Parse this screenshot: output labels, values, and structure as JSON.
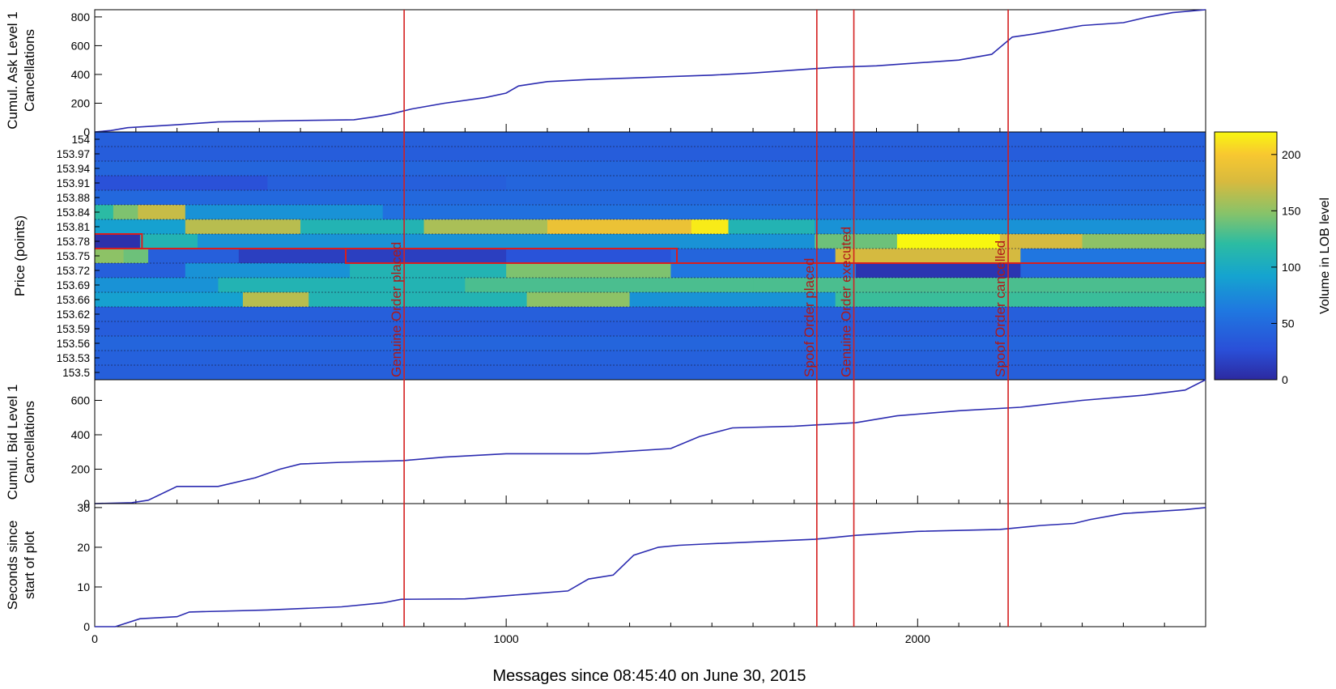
{
  "chart_data": [
    {
      "type": "line",
      "ylabel_line1": "Cumul. Ask Level 1",
      "ylabel_line2": "Cancellations",
      "xlim": [
        0,
        2700
      ],
      "ylim": [
        0,
        850
      ],
      "yticks": [
        "0",
        "200",
        "400",
        "600",
        "800"
      ],
      "ytick_values": [
        0,
        200,
        400,
        600,
        800
      ],
      "series": [
        {
          "color": "#2b2bb0",
          "x": [
            0,
            40,
            80,
            200,
            300,
            500,
            630,
            680,
            720,
            770,
            850,
            950,
            1000,
            1030,
            1100,
            1200,
            1300,
            1400,
            1500,
            1600,
            1700,
            1800,
            1900,
            2000,
            2100,
            2180,
            2230,
            2280,
            2340,
            2400,
            2500,
            2560,
            2620,
            2700
          ],
          "y": [
            0,
            10,
            30,
            50,
            70,
            80,
            85,
            105,
            125,
            160,
            200,
            240,
            270,
            320,
            350,
            365,
            375,
            385,
            395,
            410,
            430,
            450,
            460,
            480,
            500,
            540,
            660,
            680,
            710,
            740,
            760,
            800,
            830,
            850
          ]
        }
      ]
    },
    {
      "type": "heatmap",
      "ylabel": "Price (points)",
      "yticks": [
        "154",
        "153.97",
        "153.94",
        "153.91",
        "153.88",
        "153.84",
        "153.81",
        "153.78",
        "153.75",
        "153.72",
        "153.69",
        "153.66",
        "153.62",
        "153.59",
        "153.56",
        "153.53",
        "153.5"
      ],
      "xlim": [
        0,
        2700
      ],
      "colorbar": {
        "label": "Volume in LOB level",
        "range": [
          0,
          220
        ],
        "ticks": [
          "0",
          "50",
          "100",
          "150",
          "200"
        ],
        "tick_values": [
          0,
          50,
          100,
          150,
          200
        ]
      },
      "level_segments": [
        [
          [
            0,
            2700,
            40
          ]
        ],
        [
          [
            0,
            2700,
            38
          ]
        ],
        [
          [
            0,
            2700,
            45
          ]
        ],
        [
          [
            0,
            420,
            28
          ],
          [
            420,
            1000,
            40
          ],
          [
            1000,
            2700,
            45
          ]
        ],
        [
          [
            0,
            2700,
            48
          ]
        ],
        [
          [
            0,
            45,
            120
          ],
          [
            45,
            105,
            145
          ],
          [
            105,
            220,
            170
          ],
          [
            220,
            700,
            80
          ],
          [
            700,
            2700,
            55
          ]
        ],
        [
          [
            0,
            220,
            90
          ],
          [
            220,
            500,
            165
          ],
          [
            500,
            800,
            110
          ],
          [
            800,
            1100,
            160
          ],
          [
            1100,
            1450,
            190
          ],
          [
            1450,
            1540,
            215
          ],
          [
            1540,
            1750,
            110
          ],
          [
            1750,
            2700,
            80
          ]
        ],
        [
          [
            0,
            110,
            5
          ],
          [
            110,
            250,
            110
          ],
          [
            250,
            1750,
            80
          ],
          [
            1750,
            1950,
            140
          ],
          [
            1950,
            2200,
            220
          ],
          [
            2200,
            2400,
            175
          ],
          [
            2400,
            2700,
            150
          ]
        ],
        [
          [
            0,
            70,
            150
          ],
          [
            70,
            130,
            140
          ],
          [
            130,
            350,
            40
          ],
          [
            350,
            1000,
            15
          ],
          [
            1000,
            1400,
            30
          ],
          [
            1400,
            1800,
            45
          ],
          [
            1800,
            2250,
            175
          ],
          [
            2250,
            2700,
            60
          ]
        ],
        [
          [
            0,
            220,
            40
          ],
          [
            220,
            620,
            80
          ],
          [
            620,
            1000,
            110
          ],
          [
            1000,
            1400,
            145
          ],
          [
            1400,
            1850,
            60
          ],
          [
            1850,
            2250,
            8
          ],
          [
            2250,
            2700,
            45
          ]
        ],
        [
          [
            0,
            300,
            80
          ],
          [
            300,
            900,
            110
          ],
          [
            900,
            1600,
            130
          ],
          [
            1600,
            2700,
            130
          ]
        ],
        [
          [
            0,
            360,
            90
          ],
          [
            360,
            520,
            165
          ],
          [
            520,
            1050,
            110
          ],
          [
            1050,
            1300,
            150
          ],
          [
            1300,
            1800,
            80
          ],
          [
            1800,
            2700,
            125
          ]
        ],
        [
          [
            0,
            2700,
            40
          ]
        ],
        [
          [
            0,
            2700,
            38
          ]
        ],
        [
          [
            0,
            2700,
            45
          ]
        ],
        [
          [
            0,
            2700,
            42
          ]
        ],
        [
          [
            0,
            2700,
            40
          ]
        ]
      ],
      "genuine_order_outline": [
        [
          0,
          7
        ],
        [
          115,
          7
        ],
        [
          115,
          8
        ],
        [
          610,
          8
        ],
        [
          610,
          9
        ],
        [
          2700,
          9
        ]
      ],
      "spoof_order_outline": [
        [
          0,
          8
        ],
        [
          1415,
          8
        ],
        [
          1415,
          9
        ]
      ]
    },
    {
      "type": "line",
      "ylabel_line1": "Cumul. Bid Level 1",
      "ylabel_line2": "Cancellations",
      "xlim": [
        0,
        2700
      ],
      "ylim": [
        0,
        720
      ],
      "yticks": [
        "0",
        "200",
        "400",
        "600"
      ],
      "ytick_values": [
        0,
        200,
        400,
        600
      ],
      "series": [
        {
          "color": "#2b2bb0",
          "x": [
            0,
            90,
            130,
            200,
            300,
            390,
            450,
            500,
            600,
            750,
            850,
            1000,
            1200,
            1400,
            1470,
            1550,
            1700,
            1850,
            1950,
            2100,
            2250,
            2400,
            2550,
            2650,
            2700
          ],
          "y": [
            0,
            5,
            20,
            100,
            100,
            150,
            200,
            230,
            240,
            250,
            270,
            290,
            290,
            320,
            390,
            440,
            450,
            470,
            510,
            540,
            560,
            600,
            630,
            660,
            720
          ]
        }
      ]
    },
    {
      "type": "line",
      "ylabel_line1": "Seconds since",
      "ylabel_line2": "start of plot",
      "xlabel": "Messages since 08:45:40 on June 30, 2015",
      "xlim": [
        0,
        2700
      ],
      "ylim": [
        0,
        31
      ],
      "xticks": [
        "0",
        "1000",
        "2000"
      ],
      "xtick_values": [
        0,
        1000,
        2000
      ],
      "yticks": [
        "0",
        "10",
        "20",
        "30"
      ],
      "ytick_values": [
        0,
        10,
        20,
        30
      ],
      "series": [
        {
          "color": "#2b2bb0",
          "x": [
            0,
            50,
            110,
            200,
            230,
            420,
            600,
            700,
            745,
            900,
            1050,
            1150,
            1200,
            1260,
            1310,
            1370,
            1420,
            1480,
            1750,
            1850,
            2000,
            2200,
            2300,
            2380,
            2420,
            2500,
            2650,
            2700
          ],
          "y": [
            0,
            0,
            2,
            2.5,
            3.7,
            4.2,
            5,
            6,
            6.9,
            7,
            8.2,
            9,
            12,
            13,
            18,
            20,
            20.5,
            20.8,
            22,
            23,
            24,
            24.5,
            25.5,
            26,
            27,
            28.5,
            29.5,
            30
          ]
        }
      ]
    }
  ],
  "annotations": {
    "color": "#d42020",
    "events": [
      {
        "x": 752,
        "label": "Genuine Order placed"
      },
      {
        "x": 1755,
        "label": "Spoof Order placed"
      },
      {
        "x": 1845,
        "label": "Genuine Order executed"
      },
      {
        "x": 2220,
        "label": "Spoof Order cancelled"
      }
    ]
  }
}
